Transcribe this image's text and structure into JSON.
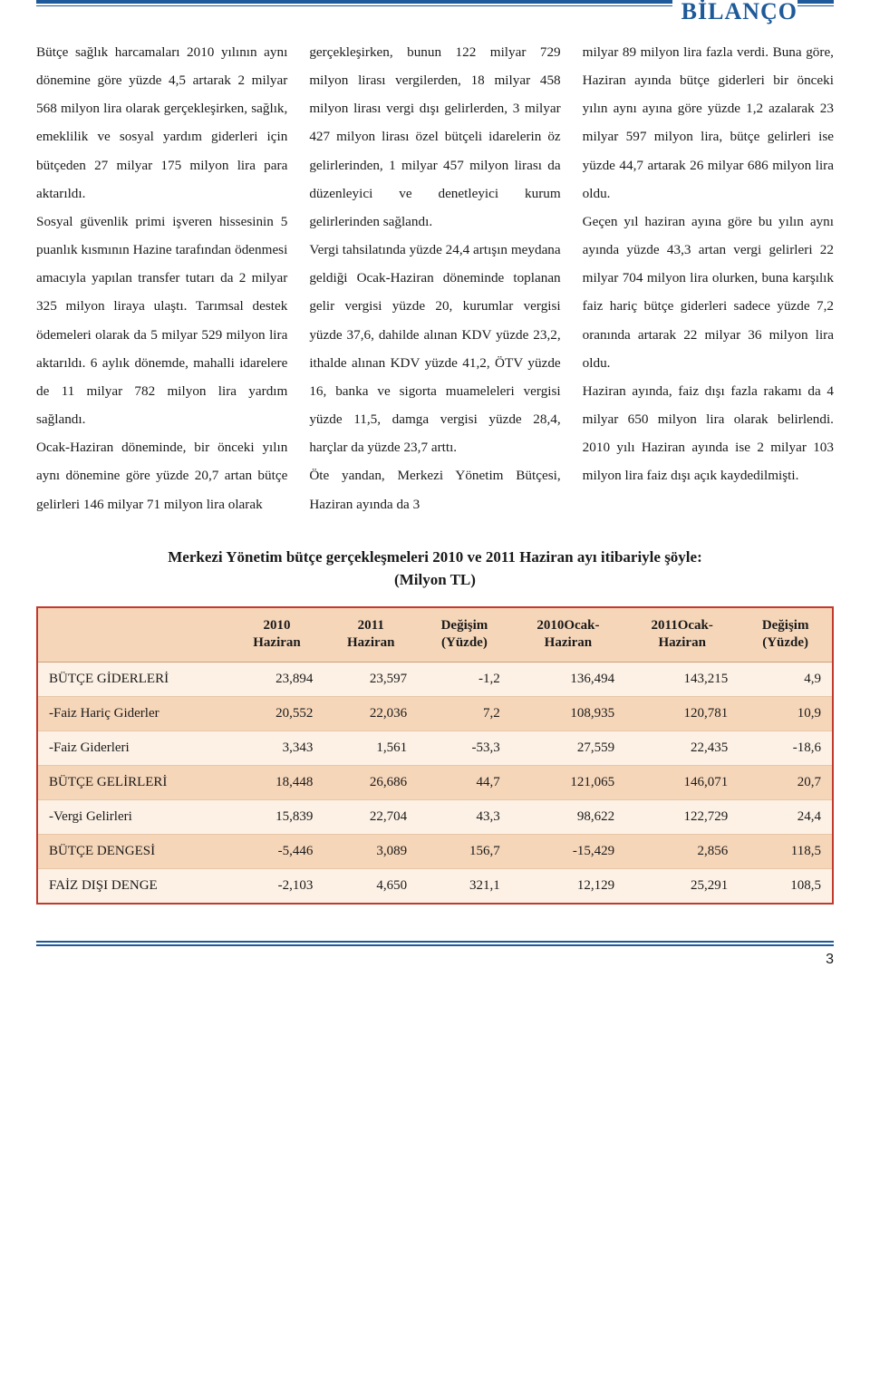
{
  "header": {
    "title": "BİLANÇO"
  },
  "article": {
    "col1": "Bütçe sağlık harcamaları 2010 yılının aynı dönemine göre yüzde 4,5 artarak 2 milyar 568 milyon lira olarak gerçekleşirken, sağlık, emeklilik ve sosyal yardım giderleri için bütçeden 27 milyar 175 milyon lira para aktarıldı.\nSosyal güvenlik primi işveren hissesinin 5 puanlık kısmının Hazine tarafından ödenmesi amacıyla yapılan transfer tutarı da 2 milyar 325 milyon liraya ulaştı. Tarımsal destek ödemeleri olarak da 5 milyar 529 milyon lira aktarıldı. 6 aylık dönemde, mahalli idarelere de 11 milyar 782 milyon lira yardım sağlandı.\nOcak-Haziran döneminde, bir önceki yılın aynı dönemine göre yüzde 20,7 artan bütçe gelirleri 146 milyar 71 milyon lira olarak",
    "col2": "gerçekleşirken, bunun 122 milyar 729 milyon lirası vergilerden, 18 milyar 458 milyon lirası vergi dışı gelirlerden, 3 milyar 427 milyon lirası özel bütçeli idarelerin öz gelirlerinden, 1 milyar 457 milyon lirası da düzenleyici ve denetleyici kurum gelirlerinden sağlandı.\nVergi tahsilatında yüzde 24,4 artışın meydana geldiği Ocak-Haziran döneminde toplanan gelir vergisi yüzde 20, kurumlar vergisi yüzde 37,6, dahilde alınan KDV yüzde 23,2, ithalde alınan KDV yüzde 41,2, ÖTV yüzde 16, banka ve sigorta muameleleri vergisi yüzde 11,5, damga vergisi yüzde 28,4, harçlar da yüzde 23,7 arttı.\nÖte yandan, Merkezi Yönetim Bütçesi, Haziran ayında da 3",
    "col3": "milyar 89 milyon lira fazla verdi. Buna göre, Haziran ayında bütçe giderleri bir önceki yılın aynı ayına göre yüzde 1,2 azalarak 23 milyar 597 milyon lira, bütçe gelirleri ise yüzde 44,7 artarak 26 milyar 686 milyon lira oldu.\nGeçen yıl haziran ayına göre bu yılın aynı ayında yüzde 43,3 artan vergi gelirleri 22 milyar 704 milyon lira olurken, buna karşılık faiz hariç bütçe giderleri sadece yüzde 7,2 oranında artarak 22 milyar 36 milyon lira oldu.\nHaziran ayında, faiz dışı fazla rakamı da 4 milyar 650 milyon lira olarak belirlendi. 2010 yılı Haziran ayında ise 2 milyar 103 milyon lira faiz dışı açık kaydedilmişti."
  },
  "table": {
    "caption_line1": "Merkezi Yönetim bütçe gerçekleşmeleri 2010 ve 2011 Haziran ayı itibariyle şöyle:",
    "caption_line2": "(Milyon TL)",
    "columns": [
      {
        "l1": "",
        "l2": ""
      },
      {
        "l1": "2010",
        "l2": "Haziran"
      },
      {
        "l1": "2011",
        "l2": "Haziran"
      },
      {
        "l1": "Değişim",
        "l2": "(Yüzde)"
      },
      {
        "l1": "2010Ocak-",
        "l2": "Haziran"
      },
      {
        "l1": "2011Ocak-",
        "l2": "Haziran"
      },
      {
        "l1": "Değişim",
        "l2": "(Yüzde)"
      }
    ],
    "rows": [
      [
        "BÜTÇE GİDERLERİ",
        "23,894",
        "23,597",
        "-1,2",
        "136,494",
        "143,215",
        "4,9"
      ],
      [
        "-Faiz Hariç Giderler",
        "20,552",
        "22,036",
        "7,2",
        "108,935",
        "120,781",
        "10,9"
      ],
      [
        "-Faiz Giderleri",
        "3,343",
        "1,561",
        "-53,3",
        "27,559",
        "22,435",
        "-18,6"
      ],
      [
        "BÜTÇE GELİRLERİ",
        "18,448",
        "26,686",
        "44,7",
        "121,065",
        "146,071",
        "20,7"
      ],
      [
        "-Vergi Gelirleri",
        "15,839",
        "22,704",
        "43,3",
        "98,622",
        "122,729",
        "24,4"
      ],
      [
        "BÜTÇE DENGESİ",
        "-5,446",
        "3,089",
        "156,7",
        "-15,429",
        "2,856",
        "118,5"
      ],
      [
        "FAİZ DIŞI DENGE",
        "-2,103",
        "4,650",
        "321,1",
        "12,129",
        "25,291",
        "108,5"
      ]
    ],
    "colors": {
      "border": "#c23a2e",
      "header_bg": "#f6d6b9",
      "row_odd_bg": "#fdf1e5",
      "row_even_bg": "#f6d6b9",
      "cell_border": "#e6c7a6"
    }
  },
  "footer": {
    "page_number": "3"
  },
  "palette": {
    "accent": "#1e5a99",
    "text": "#1a1a1a",
    "background": "#ffffff"
  }
}
